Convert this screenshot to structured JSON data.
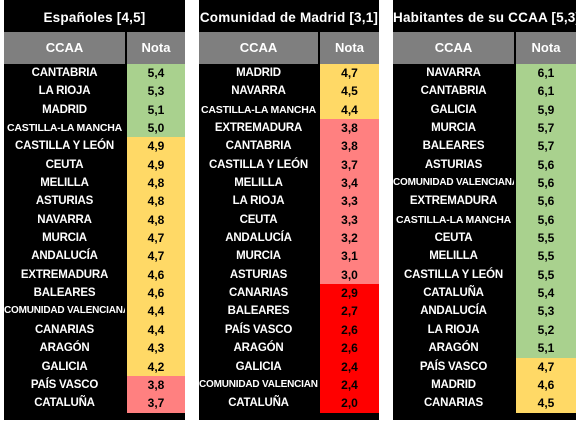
{
  "colors": {
    "green": "#a9d18e",
    "yellow": "#ffd966",
    "lightred": "#ff8080",
    "red": "#ff0000",
    "header_gray": "#7f7f7f"
  },
  "panels": [
    {
      "title": "Españoles [4,5]",
      "col_ccaa": "CCAA",
      "col_nota": "Nota",
      "rows": [
        {
          "name": "CANTABRIA",
          "value": "5,4",
          "color": "green"
        },
        {
          "name": "LA RIOJA",
          "value": "5,3",
          "color": "green"
        },
        {
          "name": "MADRID",
          "value": "5,1",
          "color": "green"
        },
        {
          "name": "CASTILLA-LA MANCHA",
          "value": "5,0",
          "color": "green"
        },
        {
          "name": "CASTILLA Y LEÓN",
          "value": "4,9",
          "color": "yellow"
        },
        {
          "name": "CEUTA",
          "value": "4,9",
          "color": "yellow"
        },
        {
          "name": "MELILLA",
          "value": "4,8",
          "color": "yellow"
        },
        {
          "name": "ASTURIAS",
          "value": "4,8",
          "color": "yellow"
        },
        {
          "name": "NAVARRA",
          "value": "4,8",
          "color": "yellow"
        },
        {
          "name": "MURCIA",
          "value": "4,7",
          "color": "yellow"
        },
        {
          "name": "ANDALUCÍA",
          "value": "4,7",
          "color": "yellow"
        },
        {
          "name": "EXTREMADURA",
          "value": "4,6",
          "color": "yellow"
        },
        {
          "name": "BALEARES",
          "value": "4,6",
          "color": "yellow"
        },
        {
          "name": "COMUNIDAD VALENCIANA",
          "value": "4,4",
          "color": "yellow"
        },
        {
          "name": "CANARIAS",
          "value": "4,4",
          "color": "yellow"
        },
        {
          "name": "ARAGÓN",
          "value": "4,3",
          "color": "yellow"
        },
        {
          "name": "GALICIA",
          "value": "4,2",
          "color": "yellow"
        },
        {
          "name": "PAÍS VASCO",
          "value": "3,8",
          "color": "lightred"
        },
        {
          "name": "CATALUÑA",
          "value": "3,7",
          "color": "lightred"
        }
      ]
    },
    {
      "title": "Comunidad de Madrid [3,1]",
      "col_ccaa": "CCAA",
      "col_nota": "Nota",
      "rows": [
        {
          "name": "MADRID",
          "value": "4,7",
          "color": "yellow"
        },
        {
          "name": "NAVARRA",
          "value": "4,5",
          "color": "yellow"
        },
        {
          "name": "CASTILLA-LA MANCHA",
          "value": "4,4",
          "color": "yellow"
        },
        {
          "name": "EXTREMADURA",
          "value": "3,8",
          "color": "lightred"
        },
        {
          "name": "CANTABRIA",
          "value": "3,8",
          "color": "lightred"
        },
        {
          "name": "CASTILLA Y LEÓN",
          "value": "3,7",
          "color": "lightred"
        },
        {
          "name": "MELILLA",
          "value": "3,4",
          "color": "lightred"
        },
        {
          "name": "LA RIOJA",
          "value": "3,3",
          "color": "lightred"
        },
        {
          "name": "CEUTA",
          "value": "3,3",
          "color": "lightred"
        },
        {
          "name": "ANDALUCÍA",
          "value": "3,2",
          "color": "lightred"
        },
        {
          "name": "MURCIA",
          "value": "3,1",
          "color": "lightred"
        },
        {
          "name": "ASTURIAS",
          "value": "3,0",
          "color": "lightred"
        },
        {
          "name": "CANARIAS",
          "value": "2,9",
          "color": "red"
        },
        {
          "name": "BALEARES",
          "value": "2,7",
          "color": "red"
        },
        {
          "name": "PAÍS VASCO",
          "value": "2,6",
          "color": "red"
        },
        {
          "name": "ARAGÓN",
          "value": "2,6",
          "color": "red"
        },
        {
          "name": "GALICIA",
          "value": "2,4",
          "color": "red"
        },
        {
          "name": "COMUNIDAD VALENCIANA",
          "value": "2,4",
          "color": "red"
        },
        {
          "name": "CATALUÑA",
          "value": "2,0",
          "color": "red"
        }
      ]
    },
    {
      "title": "Habitantes de su CCAA [5,3]",
      "col_ccaa": "CCAA",
      "col_nota": "Nota",
      "rows": [
        {
          "name": "NAVARRA",
          "value": "6,1",
          "color": "green"
        },
        {
          "name": "CANTABRIA",
          "value": "6,1",
          "color": "green"
        },
        {
          "name": "GALICIA",
          "value": "5,9",
          "color": "green"
        },
        {
          "name": "MURCIA",
          "value": "5,7",
          "color": "green"
        },
        {
          "name": "BALEARES",
          "value": "5,7",
          "color": "green"
        },
        {
          "name": "ASTURIAS",
          "value": "5,6",
          "color": "green"
        },
        {
          "name": "COMUNIDAD VALENCIANA",
          "value": "5,6",
          "color": "green"
        },
        {
          "name": "EXTREMADURA",
          "value": "5,6",
          "color": "green"
        },
        {
          "name": "CASTILLA-LA MANCHA",
          "value": "5,6",
          "color": "green"
        },
        {
          "name": "CEUTA",
          "value": "5,5",
          "color": "green"
        },
        {
          "name": "MELILLA",
          "value": "5,5",
          "color": "green"
        },
        {
          "name": "CASTILLA Y LEÓN",
          "value": "5,5",
          "color": "green"
        },
        {
          "name": "CATALUÑA",
          "value": "5,4",
          "color": "green"
        },
        {
          "name": "ANDALUCÍA",
          "value": "5,3",
          "color": "green"
        },
        {
          "name": "LA RIOJA",
          "value": "5,2",
          "color": "green"
        },
        {
          "name": "ARAGÓN",
          "value": "5,1",
          "color": "green"
        },
        {
          "name": "PAÍS VASCO",
          "value": "4,7",
          "color": "yellow"
        },
        {
          "name": "MADRID",
          "value": "4,6",
          "color": "yellow"
        },
        {
          "name": "CANARIAS",
          "value": "4,5",
          "color": "yellow"
        }
      ]
    }
  ]
}
